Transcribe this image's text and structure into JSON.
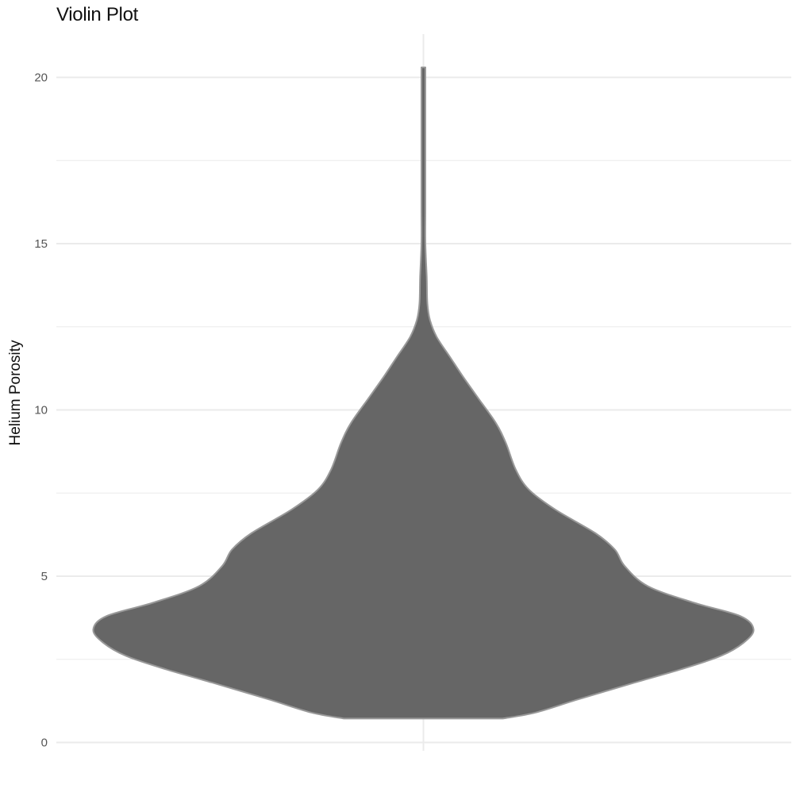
{
  "chart_data": {
    "type": "violin",
    "title": "Violin Plot",
    "xlabel": "",
    "ylabel": "Helium Porosity",
    "ylim": [
      -0.25,
      21.3
    ],
    "yticks": [
      0,
      5,
      10,
      15,
      20
    ],
    "y_minor_ticks": [
      2.5,
      7.5,
      12.5,
      17.5
    ],
    "grid": true,
    "fill_color": "#666666",
    "outline_color": "#999999",
    "gridline_color": "#ebebeb",
    "range": [
      0.72,
      20.3
    ],
    "density_profile": [
      {
        "y": 0.72,
        "width": 0.24
      },
      {
        "y": 0.9,
        "width": 0.34
      },
      {
        "y": 1.3,
        "width": 0.47
      },
      {
        "y": 1.8,
        "width": 0.64
      },
      {
        "y": 2.2,
        "width": 0.78
      },
      {
        "y": 2.6,
        "width": 0.9
      },
      {
        "y": 3.0,
        "width": 0.97
      },
      {
        "y": 3.4,
        "width": 1.0
      },
      {
        "y": 3.8,
        "width": 0.96
      },
      {
        "y": 4.2,
        "width": 0.82
      },
      {
        "y": 4.7,
        "width": 0.68
      },
      {
        "y": 5.3,
        "width": 0.61
      },
      {
        "y": 5.8,
        "width": 0.58
      },
      {
        "y": 6.3,
        "width": 0.52
      },
      {
        "y": 7.0,
        "width": 0.4
      },
      {
        "y": 7.6,
        "width": 0.32
      },
      {
        "y": 8.2,
        "width": 0.28
      },
      {
        "y": 9.0,
        "width": 0.25
      },
      {
        "y": 9.6,
        "width": 0.22
      },
      {
        "y": 10.3,
        "width": 0.17
      },
      {
        "y": 11.0,
        "width": 0.12
      },
      {
        "y": 11.6,
        "width": 0.08
      },
      {
        "y": 12.2,
        "width": 0.04
      },
      {
        "y": 12.7,
        "width": 0.02
      },
      {
        "y": 13.2,
        "width": 0.012
      },
      {
        "y": 14.0,
        "width": 0.01
      },
      {
        "y": 15.0,
        "width": 0.006
      },
      {
        "y": 16.0,
        "width": 0.005
      },
      {
        "y": 17.0,
        "width": 0.004
      },
      {
        "y": 18.0,
        "width": 0.004
      },
      {
        "y": 19.0,
        "width": 0.003
      },
      {
        "y": 20.3,
        "width": 0.004
      }
    ]
  }
}
